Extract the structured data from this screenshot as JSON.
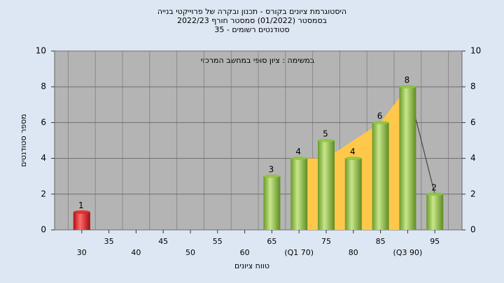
{
  "chart_data": {
    "type": "bar",
    "title": "היסטוגרמת ציונים בקורס - תכנון ובקרה של פרוייקטי בנייה",
    "subtitle": "בסמסטר (01/2022) סמסטר חורף 2022/23",
    "subtitle2": "סטודנטים רשומים - 35",
    "annotation": "במשימה : ציון סופי במחשב המרכזי",
    "y_label": "מספר סטודנטים",
    "x_label": "טווח ציונים",
    "categories": [
      "30",
      "35",
      "40",
      "45",
      "50",
      "55",
      "60",
      "65",
      "(Q1 70)",
      "75",
      "80",
      "85",
      "(Q3 90)",
      "95"
    ],
    "values": [
      1,
      0,
      0,
      0,
      0,
      0,
      0,
      3,
      4,
      5,
      4,
      6,
      8,
      2
    ],
    "colors": [
      "#e02020",
      "#8cc63f",
      "#8cc63f",
      "#8cc63f",
      "#8cc63f",
      "#8cc63f",
      "#8cc63f",
      "#8cc63f",
      "#8cc63f",
      "#8cc63f",
      "#8cc63f",
      "#8cc63f",
      "#8cc63f",
      "#8cc63f"
    ],
    "trend": [
      null,
      null,
      null,
      null,
      null,
      null,
      null,
      null,
      4,
      4,
      5,
      6,
      8,
      2
    ],
    "trend_color": "#ffc84a",
    "ylim": [
      0,
      10
    ],
    "yticks": [
      0,
      2,
      4,
      6,
      8,
      10
    ],
    "y2lim": [
      0,
      10
    ],
    "y2ticks": [
      0,
      2,
      4,
      6,
      8,
      10
    ],
    "grid": true
  }
}
